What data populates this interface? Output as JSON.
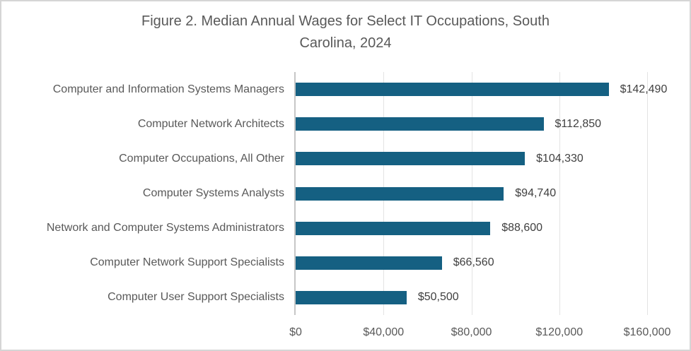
{
  "chart_data": {
    "type": "bar",
    "orientation": "horizontal",
    "title": "Figure 2. Median Annual Wages for Select IT Occupations, South Carolina, 2024",
    "title_lines": [
      "Figure 2. Median Annual Wages for Select IT Occupations, South",
      "Carolina, 2024"
    ],
    "categories": [
      "Computer and Information Systems Managers",
      "Computer Network Architects",
      "Computer Occupations, All Other",
      "Computer Systems Analysts",
      "Network and Computer Systems Administrators",
      "Computer Network Support Specialists",
      "Computer User Support Specialists"
    ],
    "values": [
      142490,
      112850,
      104330,
      94740,
      88600,
      66560,
      50500
    ],
    "data_labels": [
      "$142,490",
      "$112,850",
      "$104,330",
      "$94,740",
      "$88,600",
      "$66,560",
      "$50,500"
    ],
    "x_axis": {
      "tick_labels": [
        "$0",
        "$40,000",
        "$80,000",
        "$120,000",
        "$160,000"
      ],
      "tick_values": [
        0,
        40000,
        80000,
        120000,
        160000
      ],
      "min": 0,
      "max": 160000
    },
    "ylabel": "",
    "xlabel": "",
    "legend": "none",
    "grid": true,
    "colors": {
      "bar": "#156082",
      "gridline": "#E3E3E3",
      "axis_line": "#C6C6C6",
      "title_text": "#595959",
      "axis_text": "#595959",
      "data_label_text": "#404040",
      "background": "#FFFFFF",
      "border": "#D5D5D5"
    }
  }
}
